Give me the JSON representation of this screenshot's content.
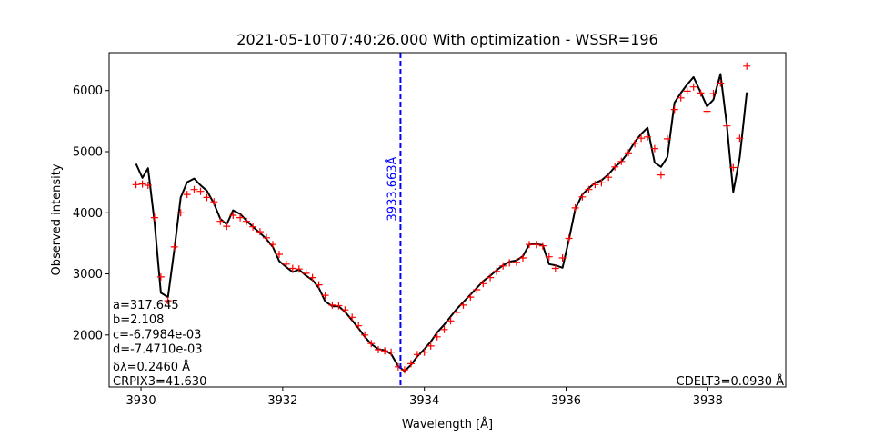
{
  "chart_data": {
    "type": "line",
    "title": "2021-05-10T07:40:26.000 With optimization - WSSR=196",
    "xlabel": "Wavelength [Å]",
    "ylabel": "Observed intensity",
    "xlim": [
      3929.55,
      3939.1
    ],
    "ylim": [
      1150,
      6620
    ],
    "xticks": [
      3930,
      3932,
      3934,
      3936,
      3938
    ],
    "yticks": [
      2000,
      3000,
      4000,
      5000,
      6000
    ],
    "grid": false,
    "colors": {
      "observed": "#ff0000",
      "model": "#000000",
      "marker_line": "#0000ff"
    },
    "vline": {
      "x": 3933.663,
      "label": "3933.663Å",
      "style": "dashed"
    },
    "annotations_left": [
      "a=317.645",
      "b=2.108",
      "c=-6.7984e-03",
      "d=-7.4710e-03",
      "δλ=0.2460 Å",
      "CRPIX3=41.630"
    ],
    "annotation_right": "CDELT3=0.0930 Å",
    "series": [
      {
        "marker": "+",
        "x": [
          3929.93,
          3930.02,
          3930.1,
          3930.19,
          3930.28,
          3930.38,
          3930.47,
          3930.56,
          3930.65,
          3930.75,
          3930.84,
          3930.93,
          3931.03,
          3931.12,
          3931.21,
          3931.3,
          3931.4,
          3931.49,
          3931.58,
          3931.68,
          3931.77,
          3931.86,
          3931.95,
          3932.05,
          3932.14,
          3932.23,
          3932.33,
          3932.42,
          3932.51,
          3932.6,
          3932.7,
          3932.79,
          3932.88,
          3932.98,
          3933.07,
          3933.16,
          3933.25,
          3933.35,
          3933.44,
          3933.53,
          3933.63,
          3933.72,
          3933.81,
          3933.9,
          3934.0,
          3934.09,
          3934.18,
          3934.28,
          3934.37,
          3934.46,
          3934.55,
          3934.65,
          3934.74,
          3934.83,
          3934.93,
          3935.02,
          3935.11,
          3935.2,
          3935.3,
          3935.39,
          3935.48,
          3935.58,
          3935.67,
          3935.76,
          3935.85,
          3935.95,
          3936.04,
          3936.13,
          3936.23,
          3936.32,
          3936.41,
          3936.5,
          3936.6,
          3936.69,
          3936.78,
          3936.88,
          3936.97,
          3937.06,
          3937.15,
          3937.25,
          3937.34,
          3937.43,
          3937.53,
          3937.62,
          3937.71,
          3937.8,
          3937.9,
          3937.99,
          3938.08,
          3938.18,
          3938.27,
          3938.36,
          3938.45,
          3938.55
        ],
        "y": [
          4460,
          4470,
          4450,
          3920,
          2950,
          2560,
          3440,
          4000,
          4300,
          4380,
          4350,
          4250,
          4180,
          3860,
          3780,
          3960,
          3920,
          3860,
          3770,
          3690,
          3590,
          3480,
          3320,
          3160,
          3090,
          3080,
          3010,
          2940,
          2820,
          2650,
          2490,
          2480,
          2410,
          2290,
          2150,
          2000,
          1860,
          1760,
          1740,
          1720,
          1480,
          1430,
          1530,
          1680,
          1720,
          1820,
          1970,
          2090,
          2230,
          2370,
          2490,
          2620,
          2740,
          2840,
          2940,
          3040,
          3130,
          3180,
          3190,
          3260,
          3480,
          3480,
          3460,
          3280,
          3090,
          3260,
          3580,
          4080,
          4260,
          4380,
          4460,
          4490,
          4580,
          4750,
          4840,
          4980,
          5130,
          5220,
          5240,
          5050,
          4620,
          5210,
          5690,
          5880,
          5990,
          6060,
          5960,
          5660,
          5950,
          6120,
          5420,
          4740,
          5220,
          6400
        ]
      },
      {
        "marker": "none",
        "x": [
          3929.93,
          3930.02,
          3930.1,
          3930.19,
          3930.28,
          3930.38,
          3930.47,
          3930.56,
          3930.65,
          3930.75,
          3930.84,
          3930.93,
          3931.03,
          3931.12,
          3931.21,
          3931.3,
          3931.4,
          3931.49,
          3931.58,
          3931.68,
          3931.77,
          3931.86,
          3931.95,
          3932.05,
          3932.14,
          3932.23,
          3932.33,
          3932.42,
          3932.51,
          3932.6,
          3932.7,
          3932.79,
          3932.88,
          3932.98,
          3933.07,
          3933.16,
          3933.25,
          3933.35,
          3933.44,
          3933.53,
          3933.63,
          3933.72,
          3933.81,
          3933.9,
          3934.0,
          3934.09,
          3934.18,
          3934.28,
          3934.37,
          3934.46,
          3934.55,
          3934.65,
          3934.74,
          3934.83,
          3934.93,
          3935.02,
          3935.11,
          3935.2,
          3935.3,
          3935.39,
          3935.48,
          3935.58,
          3935.67,
          3935.76,
          3935.85,
          3935.95,
          3936.04,
          3936.13,
          3936.23,
          3936.32,
          3936.41,
          3936.5,
          3936.6,
          3936.69,
          3936.78,
          3936.88,
          3936.97,
          3937.06,
          3937.15,
          3937.25,
          3937.34,
          3937.43,
          3937.53,
          3937.62,
          3937.71,
          3937.8,
          3937.9,
          3937.99,
          3938.08,
          3938.18,
          3938.27,
          3938.36,
          3938.45,
          3938.55
        ],
        "y": [
          4800,
          4570,
          4730,
          3850,
          2690,
          2620,
          3400,
          4250,
          4500,
          4560,
          4450,
          4360,
          4150,
          3900,
          3810,
          4040,
          3980,
          3870,
          3770,
          3670,
          3570,
          3440,
          3210,
          3110,
          3030,
          3070,
          2970,
          2900,
          2770,
          2550,
          2470,
          2470,
          2380,
          2240,
          2110,
          1970,
          1850,
          1770,
          1750,
          1690,
          1490,
          1410,
          1510,
          1650,
          1770,
          1890,
          2040,
          2170,
          2300,
          2430,
          2540,
          2660,
          2770,
          2880,
          2970,
          3060,
          3140,
          3200,
          3220,
          3290,
          3480,
          3490,
          3470,
          3160,
          3140,
          3100,
          3560,
          4060,
          4300,
          4400,
          4490,
          4530,
          4630,
          4750,
          4840,
          4990,
          5160,
          5290,
          5390,
          4820,
          4750,
          4910,
          5800,
          5960,
          6100,
          6220,
          5970,
          5740,
          5850,
          6270,
          5430,
          4340,
          4900,
          5970
        ]
      }
    ]
  }
}
